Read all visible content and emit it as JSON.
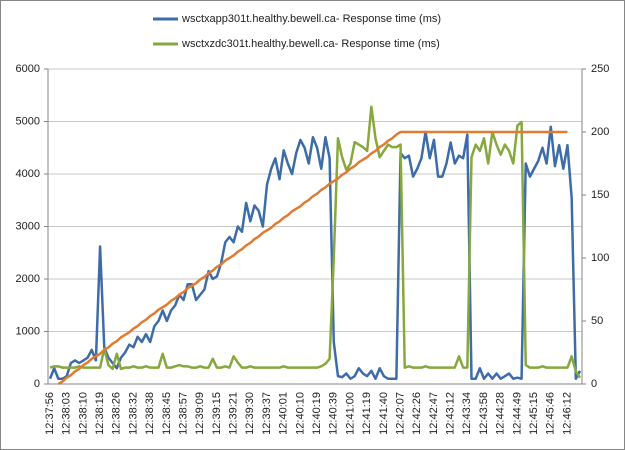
{
  "chart_data": {
    "type": "line",
    "categories": [
      "12:37:56",
      null,
      null,
      null,
      "12:38:03",
      null,
      null,
      null,
      "12:38:10",
      null,
      null,
      null,
      "12:38:19",
      null,
      null,
      null,
      "12:38:26",
      null,
      null,
      null,
      "12:38:32",
      null,
      null,
      null,
      "12:38:38",
      null,
      null,
      null,
      "12:38:45",
      null,
      null,
      null,
      "12:38:57",
      null,
      null,
      null,
      "12:39:09",
      null,
      null,
      null,
      "12:39:15",
      null,
      null,
      null,
      "12:39:21",
      null,
      null,
      null,
      "12:39:30",
      null,
      null,
      null,
      "12:39:37",
      null,
      null,
      null,
      "12:40:01",
      null,
      null,
      null,
      "12:40:10",
      null,
      null,
      null,
      "12:40:19",
      null,
      null,
      null,
      "12:40:39",
      null,
      null,
      null,
      "12:41:00",
      null,
      null,
      null,
      "12:41:19",
      null,
      null,
      null,
      "12:41:40",
      null,
      null,
      null,
      "12:42:07",
      null,
      null,
      null,
      "12:42:26",
      null,
      null,
      null,
      "12:42:47",
      null,
      null,
      null,
      "12:43:12",
      null,
      null,
      null,
      "12:43:34",
      null,
      null,
      null,
      "12:43:58",
      null,
      null,
      null,
      "12:44:28",
      null,
      null,
      null,
      "12:44:49",
      null,
      null,
      null,
      "12:45:15",
      null,
      null,
      null,
      "12:45:46",
      null,
      null,
      null,
      "12:46:12",
      null,
      null,
      null
    ],
    "series": [
      {
        "name": "wsctxapp301t.healthy.bewell.ca-  Response time (ms)",
        "color": "#3d6ca8",
        "values": [
          100,
          300,
          100,
          100,
          150,
          400,
          450,
          400,
          450,
          500,
          650,
          450,
          2620,
          700,
          500,
          400,
          300,
          500,
          600,
          750,
          700,
          900,
          800,
          950,
          800,
          1100,
          1200,
          1400,
          1200,
          1400,
          1500,
          1700,
          1600,
          1900,
          1900,
          1600,
          1700,
          1800,
          2150,
          2000,
          2050,
          2300,
          2700,
          2800,
          2700,
          3000,
          2900,
          3450,
          3100,
          3400,
          3300,
          3000,
          3800,
          4100,
          4300,
          3900,
          4450,
          4200,
          4000,
          4400,
          4650,
          4500,
          4200,
          4700,
          4500,
          4100,
          4700,
          4300,
          800,
          150,
          130,
          200,
          100,
          150,
          300,
          200,
          150,
          250,
          100,
          300,
          150,
          100,
          100,
          100,
          4400,
          4300,
          4350,
          3950,
          4100,
          4300,
          4800,
          4300,
          4650,
          3950,
          3950,
          4200,
          4600,
          4200,
          4350,
          4300,
          4750,
          100,
          100,
          300,
          100,
          200,
          100,
          200,
          100,
          150,
          200,
          100,
          120,
          100,
          4200,
          3950,
          4100,
          4250,
          4500,
          4200,
          4900,
          4150,
          4550,
          4100,
          4550,
          3550,
          100,
          250
        ]
      },
      {
        "name": "wsctxzdc301t.healthy.bewell.ca-  Response time (ms)",
        "color": "#86a83c",
        "axis": "y2",
        "values": [
          13,
          14,
          14,
          13,
          13,
          13,
          13,
          14,
          13,
          13,
          13,
          13,
          13,
          28,
          15,
          12,
          24,
          12,
          13,
          13,
          14,
          13,
          13,
          14,
          13,
          13,
          13,
          24,
          13,
          13,
          14,
          15,
          14,
          14,
          13,
          13,
          14,
          13,
          13,
          20,
          13,
          13,
          14,
          13,
          22,
          17,
          13,
          13,
          14,
          13,
          13,
          13,
          13,
          13,
          13,
          13,
          14,
          13,
          13,
          13,
          13,
          13,
          13,
          13,
          13,
          14,
          16,
          20,
          100,
          195,
          180,
          170,
          175,
          192,
          190,
          188,
          185,
          220,
          195,
          180,
          185,
          190,
          188,
          188,
          190,
          13,
          14,
          13,
          13,
          13,
          14,
          13,
          13,
          13,
          13,
          13,
          13,
          13,
          22,
          13,
          13,
          180,
          190,
          185,
          195,
          175,
          200,
          190,
          182,
          190,
          185,
          175,
          205,
          208,
          15,
          13,
          13,
          13,
          14,
          13,
          13,
          13,
          13,
          13,
          13,
          22,
          10,
          5
        ]
      },
      {
        "color": "#e07b2f",
        "axis": "y2",
        "values": [
          null,
          null,
          0,
          2,
          5,
          7,
          10,
          12,
          15,
          17,
          20,
          22,
          24,
          27,
          29,
          32,
          34,
          37,
          39,
          41,
          44,
          46,
          49,
          51,
          54,
          56,
          59,
          61,
          63,
          66,
          68,
          71,
          73,
          76,
          78,
          80,
          83,
          85,
          88,
          90,
          93,
          95,
          98,
          100,
          102,
          105,
          107,
          110,
          112,
          115,
          117,
          120,
          122,
          124,
          127,
          129,
          132,
          134,
          137,
          139,
          141,
          144,
          146,
          149,
          151,
          154,
          156,
          159,
          161,
          163,
          166,
          168,
          171,
          173,
          176,
          178,
          180,
          183,
          185,
          188,
          190,
          193,
          195,
          198,
          200,
          200,
          200,
          200,
          200,
          200,
          200,
          200,
          200,
          200,
          200,
          200,
          200,
          200,
          200,
          200,
          200,
          200,
          200,
          200,
          200,
          200,
          200,
          200,
          200,
          200,
          200,
          200,
          200,
          200,
          200,
          200,
          200,
          200,
          200,
          200,
          200,
          200,
          200,
          200,
          200,
          null,
          null,
          null
        ]
      }
    ],
    "ylim": [
      0,
      6000
    ],
    "yticks": [
      0,
      1000,
      2000,
      3000,
      4000,
      5000,
      6000
    ],
    "y2lim": [
      0,
      250
    ],
    "y2ticks": [
      0,
      50,
      100,
      150,
      200,
      250
    ],
    "grid": true
  }
}
